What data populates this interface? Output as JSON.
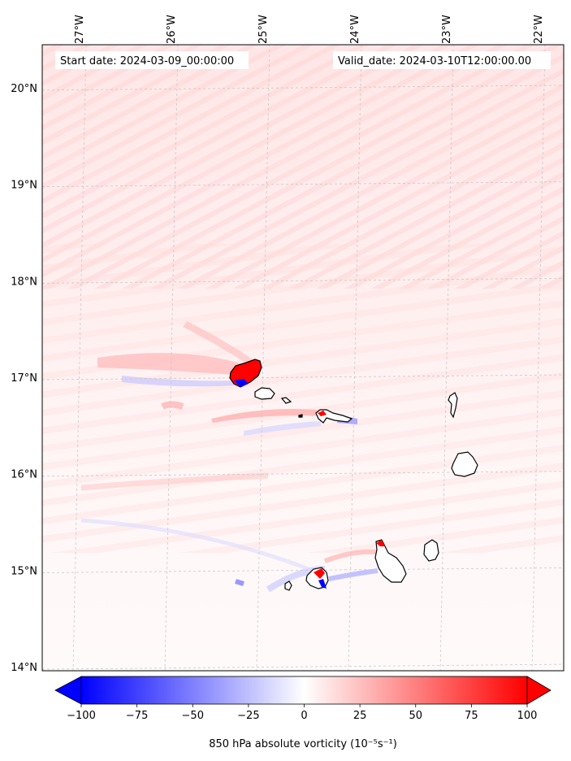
{
  "map": {
    "start_label": "Start date: 2024-03-09_00:00:00",
    "valid_label": "Valid_date: 2024-03-10T12:00:00.00",
    "lon_ticks": [
      {
        "value": -27,
        "label": "27°W"
      },
      {
        "value": -26,
        "label": "26°W"
      },
      {
        "value": -25,
        "label": "25°W"
      },
      {
        "value": -24,
        "label": "24°W"
      },
      {
        "value": -23,
        "label": "23°W"
      },
      {
        "value": -22,
        "label": "22°W"
      }
    ],
    "lat_ticks": [
      {
        "value": 20,
        "label": "20°N"
      },
      {
        "value": 19,
        "label": "19°N"
      },
      {
        "value": 18,
        "label": "18°N"
      },
      {
        "value": 17,
        "label": "17°N"
      },
      {
        "value": 16,
        "label": "16°N"
      },
      {
        "value": 15,
        "label": "15°N"
      },
      {
        "value": 14,
        "label": "14°N"
      }
    ],
    "islands": [
      "Santo Antão",
      "São Vicente",
      "Santa Luzia",
      "São Nicolau",
      "Sal",
      "Boa Vista",
      "Maio",
      "Santiago",
      "Fogo",
      "Brava"
    ]
  },
  "colorbar": {
    "label": "850 hPa absolute vorticity (10⁻⁵s⁻¹)",
    "min": -100,
    "max": 100,
    "ticks": [
      {
        "value": -100,
        "label": "−100"
      },
      {
        "value": -75,
        "label": "−75"
      },
      {
        "value": -50,
        "label": "−50"
      },
      {
        "value": -25,
        "label": "−25"
      },
      {
        "value": 0,
        "label": "0"
      },
      {
        "value": 25,
        "label": "25"
      },
      {
        "value": 50,
        "label": "50"
      },
      {
        "value": 75,
        "label": "75"
      },
      {
        "value": 100,
        "label": "100"
      }
    ],
    "colors": {
      "negative": "#0000ff",
      "neutral": "#ffffff",
      "positive": "#ff0000"
    }
  }
}
